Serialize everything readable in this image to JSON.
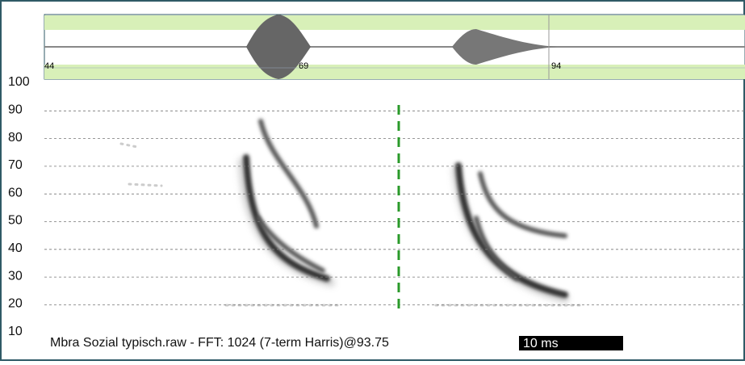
{
  "waveform": {
    "tick_labels": [
      "44",
      "69",
      "94"
    ]
  },
  "spectrogram": {
    "y_labels": [
      "100",
      "90",
      "80",
      "70",
      "60",
      "50",
      "40",
      "30",
      "20",
      "10"
    ]
  },
  "caption": "Mbra Sozial typisch.raw - FFT: 1024 (7-term Harris)@93.75",
  "scale_bar": "10 ms"
}
